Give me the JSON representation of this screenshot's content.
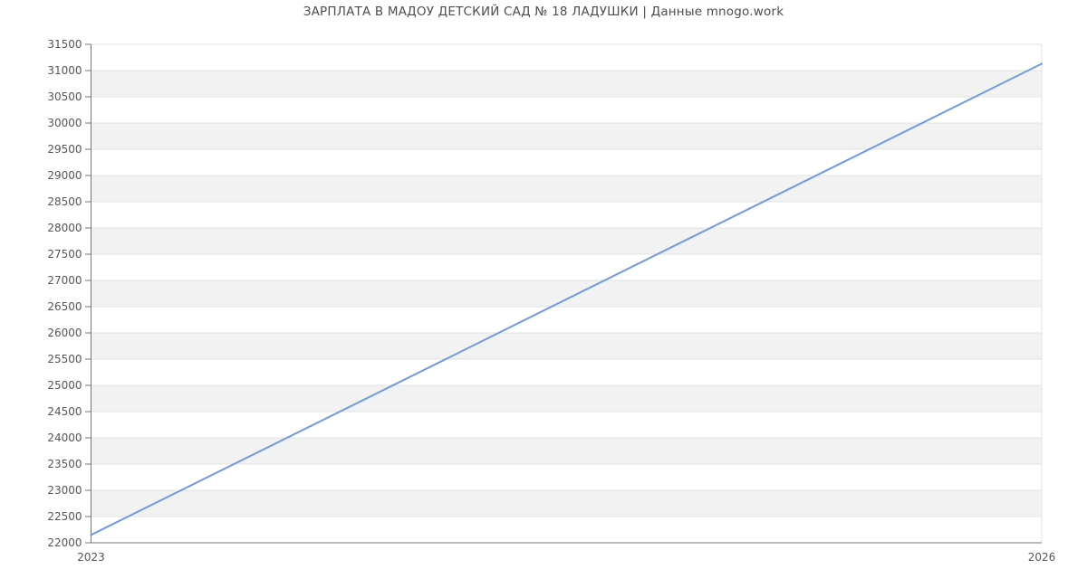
{
  "title": "ЗАРПЛАТА В МАДОУ ДЕТСКИЙ САД № 18 ЛАДУШКИ | Данные mnogo.work",
  "colors": {
    "line": "#6f9ae8",
    "band": "#f2f2f2",
    "grid": "#e3e3e3",
    "axis": "#757575",
    "tick_text": "#555555",
    "title_text": "#4d4d4d",
    "background": "#ffffff"
  },
  "chart_data": {
    "type": "line",
    "title": "ЗАРПЛАТА В МАДОУ ДЕТСКИЙ САД № 18 ЛАДУШКИ | Данные mnogo.work",
    "x": [
      2023,
      2026
    ],
    "xticks": [
      "2023",
      "2026"
    ],
    "series": [
      {
        "name": "",
        "values": [
          22150,
          31130
        ]
      }
    ],
    "ylim": [
      22000,
      31500
    ],
    "ytick_step": 500,
    "yticks": [
      22000,
      22500,
      23000,
      23500,
      24000,
      24500,
      25000,
      25500,
      26000,
      26500,
      27000,
      27500,
      28000,
      28500,
      29000,
      29500,
      30000,
      30500,
      31000,
      31500
    ],
    "xlabel": "",
    "ylabel": "",
    "grid": "horizontal",
    "legend": "none",
    "plot_background": "alternating-horizontal-bands"
  }
}
